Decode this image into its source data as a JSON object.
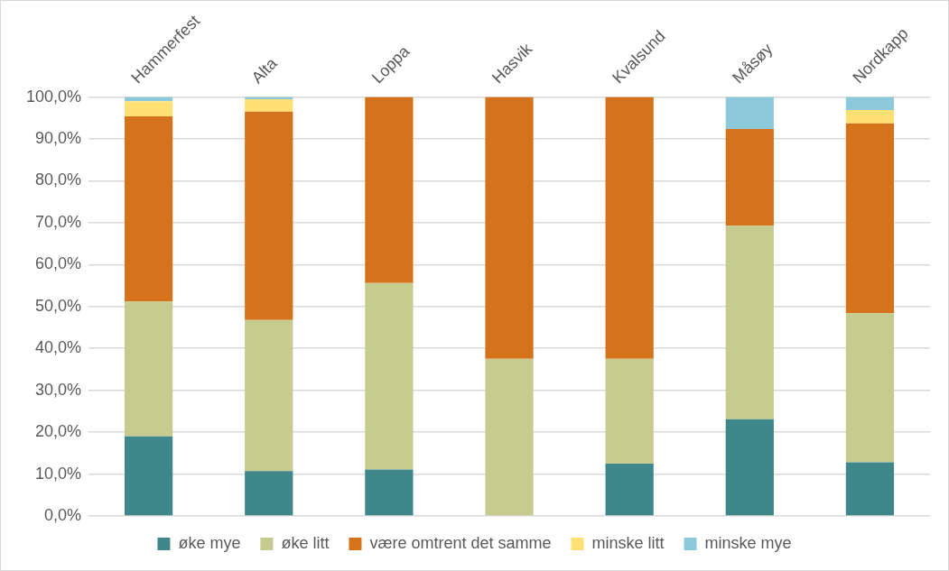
{
  "chart_data": {
    "type": "bar",
    "stacked": true,
    "categories": [
      "Hammerfest",
      "Alta",
      "Loppa",
      "Hasvik",
      "Kvalsund",
      "Måsøy",
      "Nordkapp"
    ],
    "series": [
      {
        "name": "øke mye",
        "color": "#40878b",
        "values": [
          19.0,
          10.7,
          11.1,
          0,
          12.5,
          23.1,
          12.8
        ]
      },
      {
        "name": "øke litt",
        "color": "#c6cc8f",
        "values": [
          32.2,
          36.1,
          44.5,
          37.5,
          25.0,
          46.2,
          35.6
        ]
      },
      {
        "name": "være omtrent det samme",
        "color": "#d4731b",
        "values": [
          44.2,
          49.7,
          44.4,
          62.5,
          62.5,
          23.1,
          45.3
        ]
      },
      {
        "name": "minske litt",
        "color": "#ffe074",
        "values": [
          3.6,
          3.0,
          0,
          0,
          0,
          0,
          3.2
        ]
      },
      {
        "name": "minske mye",
        "color": "#8ccadb",
        "values": [
          1.0,
          0.5,
          0,
          0,
          0,
          7.6,
          3.1
        ]
      }
    ],
    "ylim": [
      0,
      100
    ],
    "yticks": [
      {
        "value": 0,
        "label": "0,0%"
      },
      {
        "value": 10,
        "label": "10,0%"
      },
      {
        "value": 20,
        "label": "20,0%"
      },
      {
        "value": 30,
        "label": "30,0%"
      },
      {
        "value": 40,
        "label": "40,0%"
      },
      {
        "value": 50,
        "label": "50,0%"
      },
      {
        "value": 60,
        "label": "60,0%"
      },
      {
        "value": 70,
        "label": "70,0%"
      },
      {
        "value": 80,
        "label": "80,0%"
      },
      {
        "value": 90,
        "label": "90,0%"
      },
      {
        "value": 100,
        "label": "100,0%"
      }
    ],
    "grid": "y",
    "legend": "bottom"
  }
}
